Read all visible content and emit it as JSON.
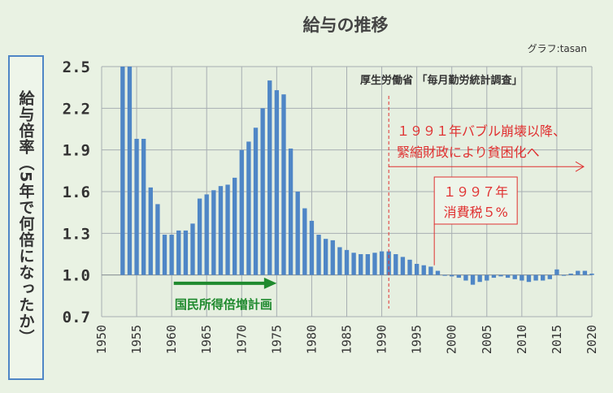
{
  "chart_data": {
    "type": "bar",
    "title": "給与の推移",
    "credit": "グラフ:tasan",
    "source": "厚生労働省 「毎月勤労統計調査」",
    "ylabel": "給与倍率（5年で何倍になったか）",
    "xlabel": "",
    "ylim": [
      0.7,
      2.5
    ],
    "y_ticks": [
      "0.7",
      "1.0",
      "1.3",
      "1.6",
      "1.9",
      "2.2",
      "2.5"
    ],
    "xlim": [
      1950,
      2020
    ],
    "x_ticks": [
      "1950",
      "1955",
      "1960",
      "1965",
      "1970",
      "1975",
      "1980",
      "1985",
      "1990",
      "1995",
      "2000",
      "2005",
      "2010",
      "2015",
      "2020"
    ],
    "grid": true,
    "bar_color": "#4f86c6",
    "x": [
      1953,
      1954,
      1955,
      1956,
      1957,
      1958,
      1959,
      1960,
      1961,
      1962,
      1963,
      1964,
      1965,
      1966,
      1967,
      1968,
      1969,
      1970,
      1971,
      1972,
      1973,
      1974,
      1975,
      1976,
      1977,
      1978,
      1979,
      1980,
      1981,
      1982,
      1983,
      1984,
      1985,
      1986,
      1987,
      1988,
      1989,
      1990,
      1991,
      1992,
      1993,
      1994,
      1995,
      1996,
      1997,
      1998,
      1999,
      2000,
      2001,
      2002,
      2003,
      2004,
      2005,
      2006,
      2007,
      2008,
      2009,
      2010,
      2011,
      2012,
      2013,
      2014,
      2015,
      2016,
      2017,
      2018,
      2019,
      2020
    ],
    "values": [
      2.5,
      2.5,
      1.98,
      1.98,
      1.63,
      1.51,
      1.29,
      1.29,
      1.32,
      1.32,
      1.37,
      1.55,
      1.58,
      1.61,
      1.64,
      1.65,
      1.7,
      1.9,
      1.96,
      2.06,
      2.2,
      2.4,
      2.33,
      2.3,
      1.91,
      1.6,
      1.48,
      1.39,
      1.29,
      1.26,
      1.25,
      1.2,
      1.18,
      1.16,
      1.15,
      1.15,
      1.16,
      1.17,
      1.17,
      1.15,
      1.13,
      1.11,
      1.08,
      1.07,
      1.06,
      1.03,
      1.0,
      0.99,
      0.98,
      0.96,
      0.93,
      0.95,
      0.96,
      0.98,
      0.99,
      0.98,
      0.97,
      0.96,
      0.95,
      0.96,
      0.96,
      0.97,
      1.04,
      1.0,
      1.01,
      1.03,
      1.03,
      1.01
    ],
    "annotations": {
      "plan_label": "国民所得倍増計画",
      "plan_color": "#1f8a2e",
      "bubble_line1": "１９９１年バブル崩壊以降、",
      "bubble_line2": "緊縮財政により貧困化へ",
      "tax_line1": "１９９７年",
      "tax_line2": "消費税５%",
      "note_color": "#e03030"
    }
  }
}
